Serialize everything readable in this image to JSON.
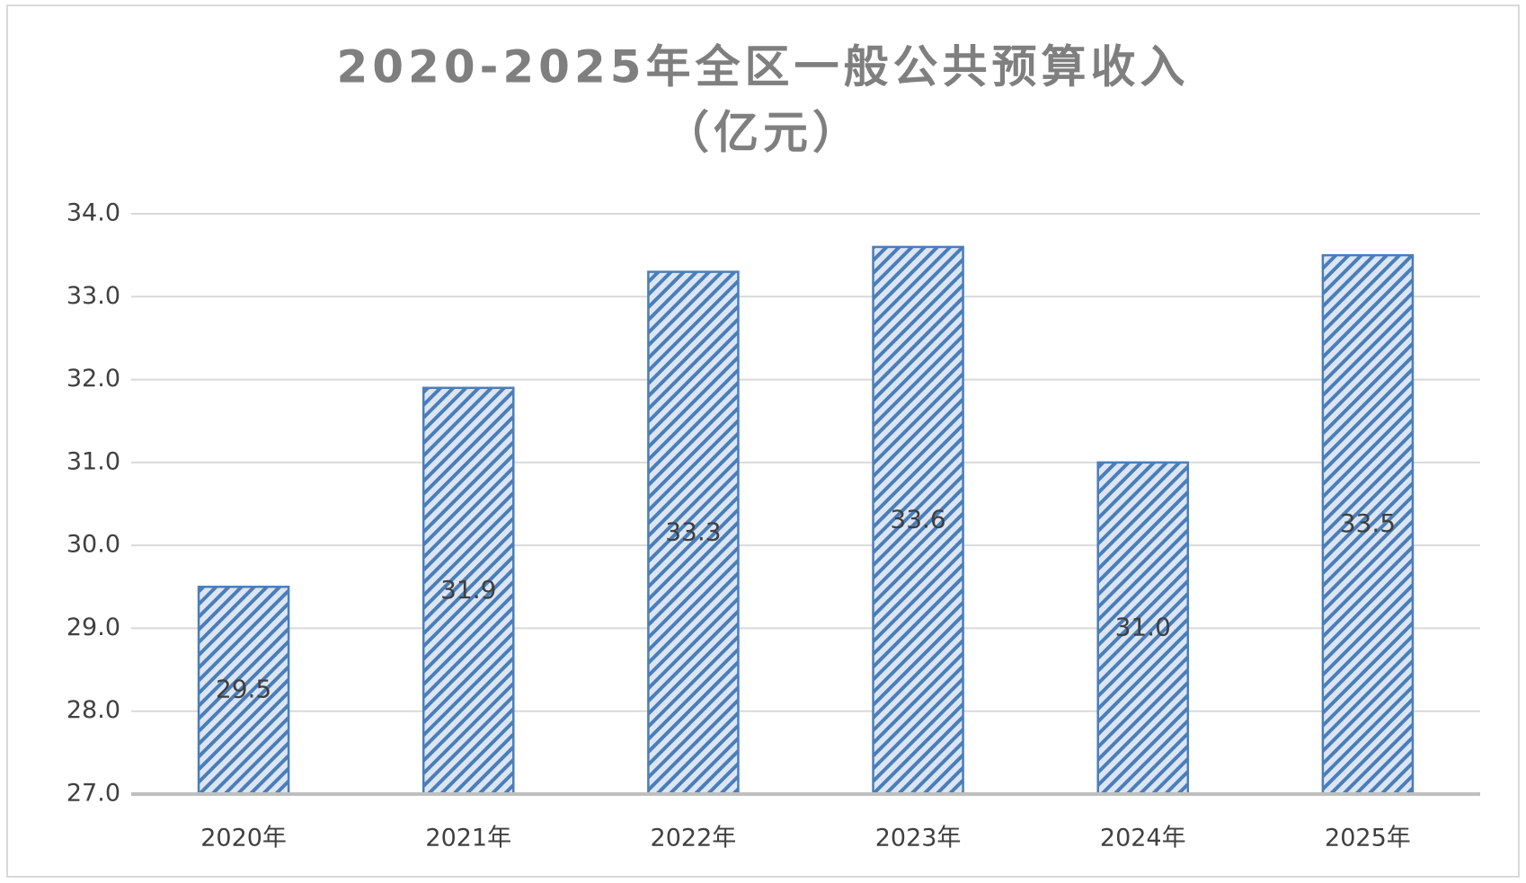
{
  "chart_data": {
    "type": "bar",
    "title": "2020-2025年全区一般公共预算收入",
    "subtitle": "（亿元）",
    "categories": [
      "2020年",
      "2021年",
      "2022年",
      "2023年",
      "2024年",
      "2025年"
    ],
    "values": [
      29.5,
      31.9,
      33.3,
      33.6,
      31.0,
      33.5
    ],
    "value_labels": [
      "29.5",
      "31.9",
      "33.3",
      "33.6",
      "31.0",
      "33.5"
    ],
    "color": "#4a7ebb",
    "ylim": [
      27,
      34
    ],
    "yticks": [
      {
        "value": 27,
        "label": "27.0"
      },
      {
        "value": 28,
        "label": "28.0"
      },
      {
        "value": 29,
        "label": "29.0"
      },
      {
        "value": 30,
        "label": "30.0"
      },
      {
        "value": 31,
        "label": "31.0"
      },
      {
        "value": 32,
        "label": "32.0"
      },
      {
        "value": 33,
        "label": "33.0"
      },
      {
        "value": 34,
        "label": "34.0"
      }
    ],
    "grid": true
  }
}
